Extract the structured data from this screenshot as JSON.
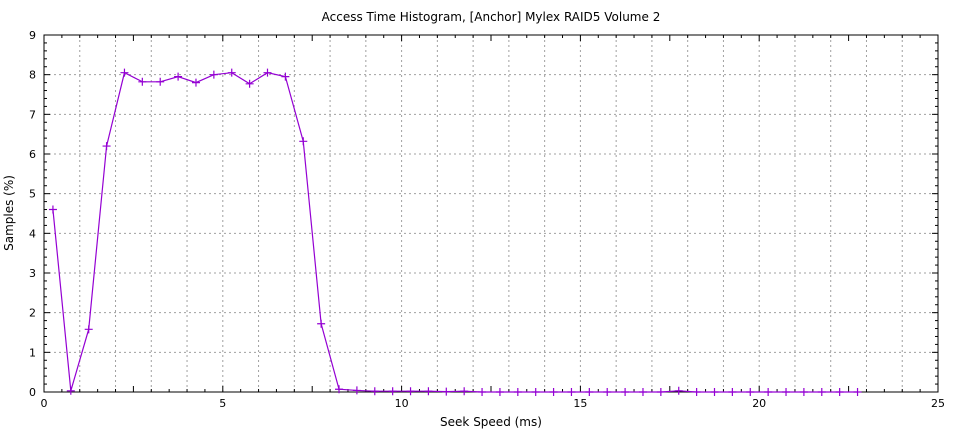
{
  "chart_data": {
    "type": "line",
    "title": "Access Time Histogram, [Anchor] Mylex RAID5 Volume 2",
    "xlabel": "Seek Speed (ms)",
    "ylabel": "Samples (%)",
    "xlim": [
      0,
      25
    ],
    "ylim": [
      0,
      9
    ],
    "xticks": [
      0,
      5,
      10,
      15,
      20,
      25
    ],
    "yticks": [
      0,
      1,
      2,
      3,
      4,
      5,
      6,
      7,
      8,
      9
    ],
    "grid": true,
    "color": "#9400d3",
    "marker": "plus",
    "x": [
      0.25,
      0.75,
      1.25,
      1.75,
      2.25,
      2.75,
      3.25,
      3.75,
      4.25,
      4.75,
      5.25,
      5.75,
      6.25,
      6.75,
      7.25,
      7.75,
      8.25,
      8.75,
      9.25,
      9.75,
      10.25,
      10.75,
      11.25,
      11.75,
      12.25,
      12.75,
      13.25,
      13.75,
      14.25,
      14.75,
      15.25,
      15.75,
      16.25,
      16.75,
      17.25,
      17.75,
      18.25,
      18.75,
      19.25,
      19.75,
      20.25,
      20.75,
      21.25,
      21.75,
      22.25,
      22.75
    ],
    "y": [
      4.6,
      0.03,
      1.58,
      6.2,
      8.05,
      7.82,
      7.82,
      7.95,
      7.8,
      8.0,
      8.05,
      7.77,
      8.05,
      7.95,
      6.32,
      1.72,
      0.07,
      0.04,
      0.02,
      0.02,
      0.02,
      0.02,
      0.01,
      0.02,
      0,
      0,
      0,
      0,
      0,
      0,
      0,
      0,
      0,
      0,
      0,
      0.03,
      0,
      0,
      0,
      0,
      0,
      0,
      0,
      0,
      0,
      0
    ]
  }
}
